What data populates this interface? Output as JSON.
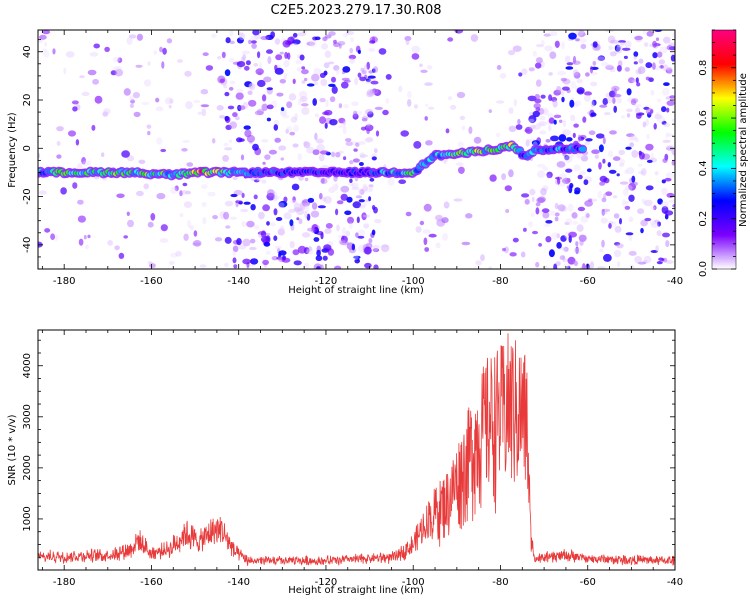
{
  "chart_data": [
    {
      "type": "heatmap",
      "title": "C2E5.2023.279.17.30.R08",
      "xlabel": "Height of straight line (km)",
      "ylabel": "Frequency (Hz)",
      "xlim": [
        -186,
        -40
      ],
      "ylim": [
        -50,
        49
      ],
      "x_ticks": [
        -180,
        -160,
        -140,
        -120,
        -100,
        -80,
        -60,
        -40
      ],
      "y_ticks": [
        -40,
        -20,
        0,
        20,
        40
      ],
      "colorbar": {
        "label": "Normalized spectral amplitude",
        "range": [
          0.0,
          0.95
        ],
        "ticks": [
          0.0,
          0.2,
          0.4,
          0.6,
          0.8
        ],
        "colors": [
          "#ffffff",
          "#7a00ff",
          "#0000ff",
          "#00ffff",
          "#00ff00",
          "#ffff00",
          "#ff0000",
          "#ff0080"
        ]
      },
      "ridge": [
        {
          "x": -186,
          "y": -10,
          "amp": 0.55
        },
        {
          "x": -175,
          "y": -10,
          "amp": 0.6
        },
        {
          "x": -165,
          "y": -10,
          "amp": 0.65
        },
        {
          "x": -155,
          "y": -11,
          "amp": 0.6
        },
        {
          "x": -148,
          "y": -10,
          "amp": 0.92
        },
        {
          "x": -140,
          "y": -10,
          "amp": 0.4
        },
        {
          "x": -125,
          "y": -10,
          "amp": 0.35
        },
        {
          "x": -112,
          "y": -10,
          "amp": 0.3
        },
        {
          "x": -100,
          "y": -10,
          "amp": 0.6
        },
        {
          "x": -95,
          "y": -3,
          "amp": 0.45
        },
        {
          "x": -88,
          "y": -2,
          "amp": 0.7
        },
        {
          "x": -80,
          "y": 0,
          "amp": 0.6
        },
        {
          "x": -77,
          "y": 1,
          "amp": 0.75
        },
        {
          "x": -74,
          "y": -4,
          "amp": 0.4
        },
        {
          "x": -72,
          "y": -1,
          "amp": 0.45
        },
        {
          "x": -62,
          "y": 0,
          "amp": 0.4
        }
      ],
      "noise_regions": [
        {
          "x": [
            -186,
            -143
          ],
          "density": 0.25
        },
        {
          "x": [
            -143,
            -108
          ],
          "density": 1.0
        },
        {
          "x": [
            -108,
            -73
          ],
          "density": 0.2
        },
        {
          "x": [
            -73,
            -40
          ],
          "density": 1.0
        }
      ]
    },
    {
      "type": "line",
      "xlabel": "Height of straight line (km)",
      "ylabel": "SNR (10 * v/v)",
      "xlim": [
        -186,
        -40
      ],
      "ylim": [
        0,
        4700
      ],
      "x_ticks": [
        -180,
        -160,
        -140,
        -120,
        -100,
        -80,
        -60,
        -40
      ],
      "y_ticks": [
        1000,
        2000,
        3000,
        4000
      ],
      "line_color": "#e83a3a",
      "envelope": [
        {
          "x": -186,
          "y": 350
        },
        {
          "x": -170,
          "y": 400
        },
        {
          "x": -165,
          "y": 550
        },
        {
          "x": -163,
          "y": 800
        },
        {
          "x": -160,
          "y": 450
        },
        {
          "x": -156,
          "y": 550
        },
        {
          "x": -152,
          "y": 1000
        },
        {
          "x": -149,
          "y": 750
        },
        {
          "x": -146,
          "y": 1050
        },
        {
          "x": -144,
          "y": 1100
        },
        {
          "x": -141,
          "y": 500
        },
        {
          "x": -138,
          "y": 250
        },
        {
          "x": -120,
          "y": 250
        },
        {
          "x": -104,
          "y": 350
        },
        {
          "x": -100,
          "y": 700
        },
        {
          "x": -96,
          "y": 1500
        },
        {
          "x": -92,
          "y": 2000
        },
        {
          "x": -88,
          "y": 3000
        },
        {
          "x": -85,
          "y": 3800
        },
        {
          "x": -83,
          "y": 4200
        },
        {
          "x": -80,
          "y": 4400
        },
        {
          "x": -78,
          "y": 4700
        },
        {
          "x": -76,
          "y": 4500
        },
        {
          "x": -74,
          "y": 4300
        },
        {
          "x": -73,
          "y": 800
        },
        {
          "x": -72,
          "y": 300
        },
        {
          "x": -65,
          "y": 400
        },
        {
          "x": -60,
          "y": 300
        },
        {
          "x": -40,
          "y": 250
        }
      ]
    }
  ]
}
